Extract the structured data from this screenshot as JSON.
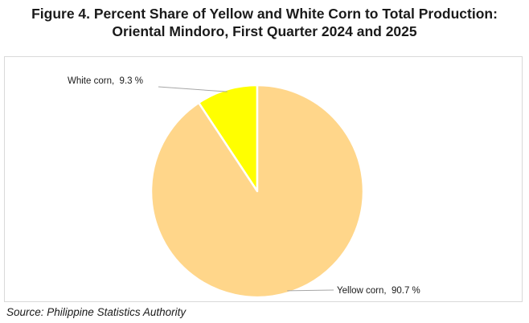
{
  "figure": {
    "title_line1": "Figure 4. Percent Share of Yellow and White Corn to Total Production:",
    "title_line2": "Oriental Mindoro, First Quarter 2024 and 2025",
    "source": "Source: Philippine Statistics Authority"
  },
  "chart_data": {
    "type": "pie",
    "title": "Figure 4. Percent Share of Yellow and White Corn to Total Production: Oriental Mindoro, First Quarter 2024 and 2025",
    "categories": [
      "White corn",
      "Yellow corn"
    ],
    "values": [
      9.3,
      90.7
    ],
    "unit": "%",
    "data_labels": [
      "White corn,  9.3 %",
      "Yellow corn,  90.7 %"
    ],
    "colors": [
      "#ffff00",
      "#ffd68a"
    ],
    "legend": "none"
  }
}
